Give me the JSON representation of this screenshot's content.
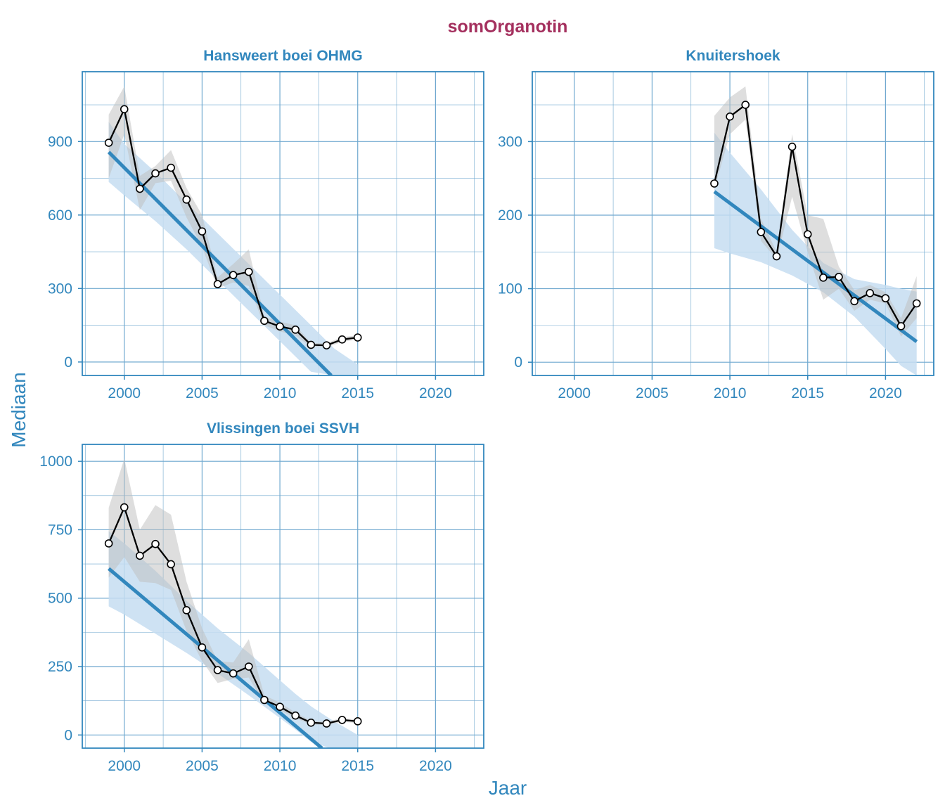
{
  "title": "somOrganotin",
  "xlabel": "Jaar",
  "ylabel": "Mediaan",
  "colors": {
    "title": "#A4305E",
    "accent": "#3287BD",
    "grid": "#6FA8CF",
    "ribbon_trend": "#C6DDF1",
    "ribbon_data": "#BEBEBE",
    "line": "#000000"
  },
  "chart_data": [
    {
      "type": "line",
      "title": "Hansweert boei OHMG",
      "xlim": [
        1997.3,
        2023.1
      ],
      "ylim": [
        -55,
        1185
      ],
      "xticks": [
        2000,
        2005,
        2010,
        2015,
        2020
      ],
      "yticks": [
        0,
        300,
        600,
        900
      ],
      "xtick_labels": [
        "2000",
        "2005",
        "2010",
        "2015",
        "2020"
      ],
      "ytick_labels": [
        "0",
        "300",
        "600",
        "900"
      ],
      "series": [
        {
          "x": [
            1999,
            2000,
            2001,
            2002,
            2003,
            2004,
            2005,
            2006,
            2007,
            2008,
            2009,
            2010,
            2011,
            2012,
            2013,
            2014,
            2015
          ],
          "y": [
            895,
            1032,
            707,
            770,
            793,
            663,
            533,
            318,
            355,
            368,
            168,
            145,
            132,
            70,
            68,
            92,
            100
          ],
          "lower": [
            750,
            930,
            620,
            730,
            740,
            590,
            470,
            300,
            325,
            310,
            150,
            125,
            108,
            62,
            60,
            82,
            92
          ],
          "upper": [
            1010,
            1125,
            760,
            800,
            865,
            710,
            600,
            345,
            400,
            460,
            185,
            165,
            150,
            78,
            76,
            102,
            108
          ]
        }
      ],
      "trend": {
        "x": [
          1999,
          2013.3
        ],
        "y": [
          857,
          -55
        ],
        "band_x": [
          1999,
          2000,
          2002,
          2004,
          2006,
          2008,
          2010,
          2012,
          2013.5,
          2015
        ],
        "band_lower": [
          735,
          680,
          575,
          460,
          335,
          210,
          85,
          -40,
          -55,
          -55
        ],
        "band_upper": [
          980,
          890,
          775,
          650,
          525,
          400,
          275,
          150,
          55,
          -10
        ]
      }
    },
    {
      "type": "line",
      "title": "Knuitershoek",
      "xlim": [
        1997.3,
        2023.1
      ],
      "ylim": [
        -18,
        395
      ],
      "xticks": [
        2000,
        2005,
        2010,
        2015,
        2020
      ],
      "yticks": [
        0,
        100,
        200,
        300
      ],
      "xtick_labels": [
        "2000",
        "2005",
        "2010",
        "2015",
        "2020"
      ],
      "ytick_labels": [
        "0",
        "100",
        "200",
        "300"
      ],
      "series": [
        {
          "x": [
            2009,
            2010,
            2011,
            2012,
            2013,
            2014,
            2015,
            2016,
            2017,
            2018,
            2019,
            2020,
            2021,
            2022
          ],
          "y": [
            243,
            334,
            350,
            177,
            144,
            293,
            174,
            115,
            116,
            83,
            94,
            87,
            49,
            80
          ],
          "lower": [
            235,
            310,
            330,
            165,
            140,
            225,
            150,
            85,
            100,
            70,
            85,
            80,
            35,
            60
          ],
          "upper": [
            335,
            360,
            375,
            195,
            150,
            310,
            200,
            195,
            130,
            98,
            105,
            95,
            60,
            117
          ]
        }
      ],
      "trend": {
        "x": [
          2009,
          2022
        ],
        "y": [
          232,
          28
        ],
        "band_x": [
          2009,
          2010,
          2012,
          2014,
          2016,
          2018,
          2020,
          2021,
          2022
        ],
        "band_lower": [
          155,
          148,
          136,
          118,
          95,
          62,
          18,
          -5,
          -18
        ],
        "band_upper": [
          312,
          285,
          235,
          180,
          135,
          113,
          105,
          100,
          96
        ]
      }
    },
    {
      "type": "line",
      "title": "Vlissingen boei SSVH",
      "xlim": [
        1997.3,
        2023.1
      ],
      "ylim": [
        -48,
        1062
      ],
      "xticks": [
        2000,
        2005,
        2010,
        2015,
        2020
      ],
      "yticks": [
        0,
        250,
        500,
        750,
        1000
      ],
      "xtick_labels": [
        "2000",
        "2005",
        "2010",
        "2015",
        "2020"
      ],
      "ytick_labels": [
        "0",
        "250",
        "500",
        "750",
        "1000"
      ],
      "series": [
        {
          "x": [
            1999,
            2000,
            2001,
            2002,
            2003,
            2004,
            2005,
            2006,
            2007,
            2008,
            2009,
            2010,
            2011,
            2012,
            2013,
            2014,
            2015
          ],
          "y": [
            700,
            832,
            655,
            698,
            624,
            456,
            320,
            237,
            225,
            250,
            128,
            103,
            71,
            45,
            42,
            55,
            50
          ],
          "lower": [
            575,
            650,
            560,
            555,
            530,
            380,
            270,
            190,
            205,
            210,
            115,
            90,
            62,
            38,
            36,
            48,
            44
          ],
          "upper": [
            830,
            1010,
            750,
            840,
            805,
            560,
            390,
            270,
            265,
            350,
            145,
            118,
            82,
            52,
            48,
            62,
            56
          ]
        }
      ],
      "trend": {
        "x": [
          1999,
          2012.7
        ],
        "y": [
          608,
          -48
        ],
        "band_x": [
          1999,
          2000,
          2002,
          2004,
          2006,
          2008,
          2010,
          2011,
          2012,
          2013.2,
          2015
        ],
        "band_lower": [
          470,
          440,
          370,
          300,
          225,
          145,
          62,
          20,
          -25,
          -48,
          -48
        ],
        "band_upper": [
          745,
          700,
          600,
          490,
          390,
          300,
          200,
          150,
          105,
          60,
          0
        ]
      }
    }
  ]
}
